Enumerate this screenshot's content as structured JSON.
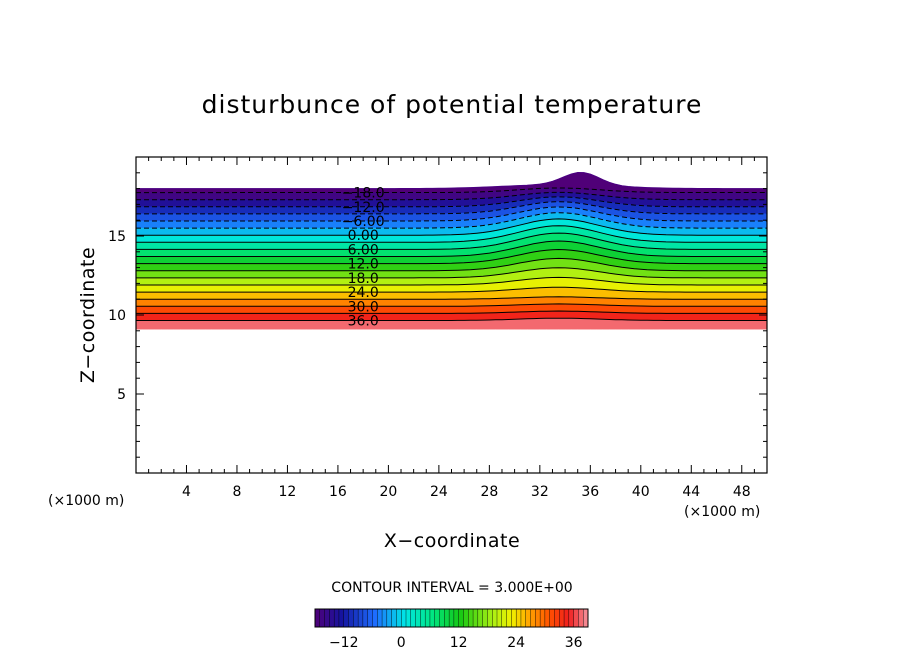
{
  "chart_data": {
    "type": "contour",
    "title": "disturbunce of potential temperature",
    "xlabel": "X−coordinate",
    "ylabel": "Z−coordinate",
    "x_unit_label": "(×1000 m)",
    "y_unit_label": "(×1000 m)",
    "xlim": [
      0,
      50
    ],
    "ylim": [
      0,
      20
    ],
    "x_ticks": [
      4,
      8,
      12,
      16,
      20,
      24,
      28,
      32,
      36,
      40,
      44,
      48
    ],
    "y_ticks": [
      5,
      10,
      15
    ],
    "contour_interval_label": "CONTOUR INTERVAL = 3.000E+00",
    "contour_interval": 3,
    "levels": [
      -18,
      -15,
      -12,
      -9,
      -6,
      -3,
      0,
      3,
      6,
      9,
      12,
      15,
      18,
      21,
      24,
      27,
      30,
      33,
      36
    ],
    "contour_labels": [
      "−18.0",
      "−12.0",
      "−6.00",
      "0.00",
      "6.00",
      "12.0",
      "18.0",
      "24.0",
      "30.0",
      "36.0"
    ],
    "field_top_z": 18.0,
    "field_bottom_z": 9.1,
    "bump_center_x": 33.5,
    "bump_peak_z": 18.8,
    "colorbar_min": -18,
    "colorbar_max": 39,
    "colorbar_ticks": [
      "−12",
      "0",
      "12",
      "24",
      "36"
    ],
    "colorbar_tick_values": [
      -12,
      0,
      12,
      24,
      36
    ],
    "grid": false
  }
}
